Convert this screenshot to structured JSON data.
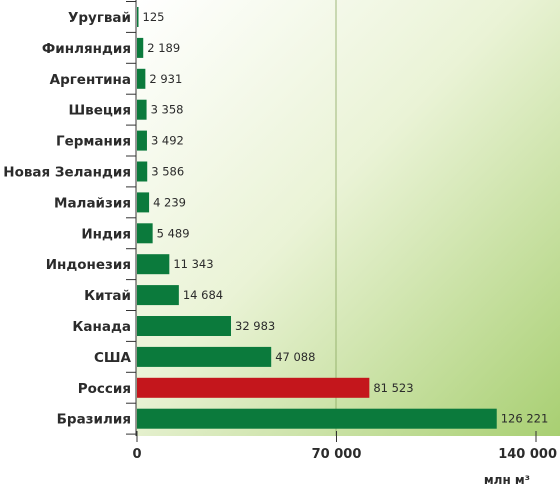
{
  "chart_data": {
    "type": "bar",
    "orientation": "horizontal",
    "categories": [
      "Уругвай",
      "Финляндия",
      "Аргентина",
      "Швеция",
      "Германия",
      "Новая Зеландия",
      "Малайзия",
      "Индия",
      "Индонезия",
      "Китай",
      "Канада",
      "США",
      "Россия",
      "Бразилия"
    ],
    "values": [
      125,
      2189,
      2931,
      3358,
      3492,
      3586,
      4239,
      5489,
      11343,
      14684,
      32983,
      47088,
      81523,
      126221
    ],
    "value_labels": [
      "125",
      "2 189",
      "2 931",
      "3 358",
      "3 492",
      "3 586",
      "4 239",
      "5 489",
      "11 343",
      "14 684",
      "32 983",
      "47 088",
      "81 523",
      "126 221"
    ],
    "xlim": [
      0,
      140000
    ],
    "x_ticks": [
      0,
      70000,
      140000
    ],
    "x_tick_labels": [
      "0",
      "70 000",
      "140 000"
    ],
    "xlabel": "млн м³",
    "highlight_category": "Россия",
    "colors": {
      "bar": "#0b7a3c",
      "highlight": "#c4161c",
      "background_light": "#ffffff",
      "background_dark": "#a8cf72"
    }
  }
}
